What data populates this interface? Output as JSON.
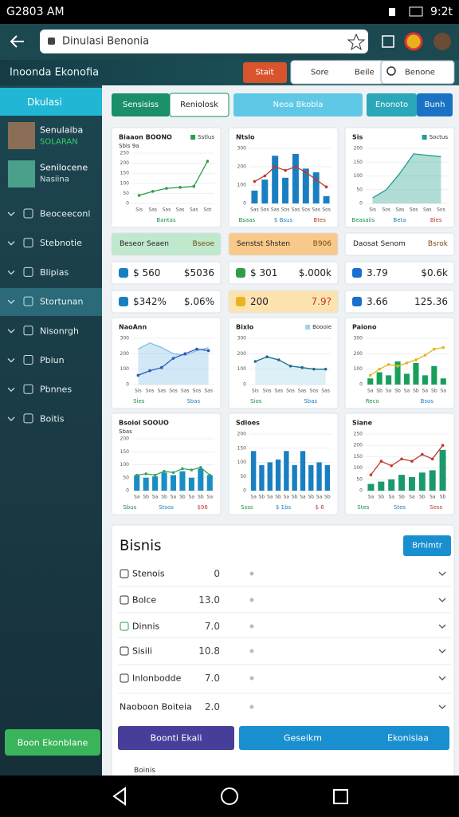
{
  "status_bar": {
    "left": "G2803 AM",
    "right": "9:2t"
  },
  "browser": {
    "url": "Dinulasi Benonia"
  },
  "header": {
    "title": "Inoonda Ekonofia",
    "buttons": [
      "Stait",
      "Sore",
      "Beile"
    ],
    "search": "Benone"
  },
  "sidebar": {
    "active": "Dkulasi",
    "profiles": [
      {
        "name": "Senulaiba",
        "sub": "SOLARAN"
      },
      {
        "name": "Senilocene",
        "sub": "Nasiina"
      }
    ],
    "menu": [
      "Beoceeconl",
      "Stebnotie",
      "Blipias",
      "Stortunan",
      "Nisonrgh",
      "Pbiun",
      "Pbnnes",
      "Boitis"
    ],
    "button": "Boon Ekonblane"
  },
  "tabs": [
    "Sensisiss",
    "Reniolosk",
    "Neoa Bkobla",
    "Enonoto",
    "Bunh"
  ],
  "charts": [
    {
      "type": "line",
      "title": "Biaaon BOONO",
      "subtitle": "Sbis 9a",
      "ylim": [
        0,
        250
      ],
      "yticks": [
        0,
        50,
        100,
        150,
        200,
        250
      ],
      "categories": [
        "Sis",
        "Sas",
        "Sas",
        "Sas",
        "Sas",
        "Sot"
      ],
      "series": [
        {
          "name": "Sstlus",
          "kind": "line",
          "color": "#2e9e4a",
          "values": [
            40,
            60,
            75,
            80,
            85,
            210
          ]
        }
      ],
      "footer": [
        "Bantas"
      ]
    },
    {
      "type": "combo",
      "title": "Ntslo",
      "ylim": [
        0,
        300
      ],
      "yticks": [
        0,
        100,
        200,
        300
      ],
      "categories": [
        "Sas",
        "Sos",
        "Sas",
        "Sos",
        "Sas",
        "Sos",
        "Sas",
        "Sos"
      ],
      "series": [
        {
          "kind": "bar",
          "color": "#1a7fc1",
          "values": [
            70,
            130,
            260,
            140,
            270,
            190,
            170,
            40
          ]
        },
        {
          "kind": "line",
          "color": "#c0392b",
          "values": [
            120,
            150,
            200,
            180,
            200,
            170,
            130,
            90
          ]
        }
      ],
      "footer": [
        "Bsaas",
        "$ Bsus",
        "Btes"
      ]
    },
    {
      "type": "area",
      "title": "Sis",
      "ylim": [
        0,
        200
      ],
      "yticks": [
        0,
        50,
        100,
        150,
        200
      ],
      "categories": [
        "Sis",
        "Sos",
        "Sas",
        "Sos",
        "Sas",
        "Sos"
      ],
      "series": [
        {
          "name": "Soctus",
          "kind": "area",
          "color": "#1e9e8a",
          "values": [
            20,
            50,
            110,
            180,
            175,
            170
          ]
        }
      ],
      "footer": [
        "Beasaiis",
        "Beta",
        "Bies"
      ]
    },
    {
      "type": "area",
      "title": "NaoAnn",
      "ylim": [
        0,
        300
      ],
      "yticks": [
        0,
        100,
        200,
        300
      ],
      "categories": [
        "Sis",
        "Sos",
        "Sas",
        "Sos",
        "Sas",
        "Sos",
        "Sas"
      ],
      "series": [
        {
          "kind": "area",
          "color": "#7dbde9",
          "values": [
            230,
            270,
            240,
            200,
            190,
            220,
            240
          ]
        },
        {
          "kind": "line",
          "color": "#2a5ab8",
          "values": [
            60,
            90,
            110,
            170,
            200,
            230,
            220
          ]
        }
      ],
      "footer": [
        "Sies",
        "Sbas"
      ]
    },
    {
      "type": "area",
      "title": "Bixlo",
      "ylim": [
        0,
        300
      ],
      "yticks": [
        0,
        100,
        200,
        300
      ],
      "categories": [
        "Sis",
        "Sos",
        "Sas",
        "Sos",
        "Sas",
        "Sos",
        "Sas"
      ],
      "series": [
        {
          "name": "Boooie",
          "kind": "area",
          "color": "#9fd3ec",
          "values": [
            150,
            180,
            160,
            120,
            110,
            100,
            100
          ]
        },
        {
          "kind": "line",
          "color": "#1e6f8a",
          "values": [
            150,
            180,
            160,
            120,
            110,
            100,
            100
          ]
        }
      ],
      "footer": [
        "Sios",
        "Sbas"
      ]
    },
    {
      "type": "combo",
      "title": "Paiono",
      "ylim": [
        0,
        300
      ],
      "yticks": [
        0,
        100,
        200,
        300
      ],
      "categories": [
        "Sa",
        "Sb",
        "Sa",
        "Sb",
        "Sa",
        "Sb",
        "Sa",
        "Sb",
        "Sa"
      ],
      "series": [
        {
          "kind": "bar",
          "color": "#18a05a",
          "values": [
            40,
            80,
            60,
            150,
            70,
            140,
            60,
            120,
            40
          ]
        },
        {
          "kind": "line",
          "color": "#e6b422",
          "values": [
            60,
            100,
            130,
            120,
            140,
            160,
            190,
            230,
            240
          ]
        }
      ],
      "footer": [
        "Reco",
        "Bsos"
      ]
    },
    {
      "type": "combo",
      "title": "Bsoiol SOOUO",
      "subtitle": "Sbas",
      "ylim": [
        0,
        200
      ],
      "yticks": [
        0,
        50,
        100,
        150,
        200
      ],
      "categories": [
        "Sa",
        "Sb",
        "Sa",
        "Sb",
        "Sa",
        "Sb",
        "Sa",
        "Sb",
        "Sa"
      ],
      "series": [
        {
          "kind": "bar",
          "color": "#1a8ec4",
          "values": [
            60,
            50,
            55,
            70,
            60,
            75,
            50,
            85,
            60
          ]
        },
        {
          "kind": "line",
          "color": "#3aa55a",
          "values": [
            60,
            65,
            60,
            75,
            70,
            85,
            80,
            90,
            60
          ]
        }
      ],
      "footer": [
        "Sbus",
        "Stsos",
        "$96"
      ]
    },
    {
      "type": "bar",
      "title": "Sdloes",
      "ylim": [
        0,
        200
      ],
      "yticks": [
        0,
        50,
        100,
        150,
        200
      ],
      "categories": [
        "Sa",
        "Sb",
        "Sa",
        "Sb",
        "Sa",
        "Sb",
        "Sa",
        "Sb",
        "Sa",
        "Sb"
      ],
      "series": [
        {
          "kind": "bar",
          "color": "#1a7fc1",
          "values": [
            140,
            90,
            100,
            110,
            140,
            90,
            140,
            90,
            100,
            90
          ]
        }
      ],
      "footer": [
        "Ssss",
        "$ 1bs",
        "$ 6"
      ]
    },
    {
      "type": "combo",
      "title": "Siane",
      "ylim": [
        0,
        250
      ],
      "yticks": [
        0,
        50,
        100,
        150,
        200,
        250
      ],
      "categories": [
        "Sa",
        "Sb",
        "Sa",
        "Sb",
        "Sa",
        "Sb",
        "Sa",
        "Sb"
      ],
      "series": [
        {
          "kind": "bar",
          "color": "#1a9a6a",
          "values": [
            30,
            40,
            50,
            70,
            60,
            80,
            90,
            180
          ]
        },
        {
          "kind": "line",
          "color": "#c0392b",
          "values": [
            70,
            130,
            110,
            140,
            130,
            160,
            140,
            200
          ]
        }
      ],
      "footer": [
        "Stes",
        "Stes",
        "Sess"
      ]
    }
  ],
  "stats": [
    [
      {
        "a": "Beseor Seaen",
        "b": "Bseoe"
      },
      {
        "a": "Senstst Shsten",
        "b": "B906"
      },
      {
        "a": "Daosat Senom",
        "b": "Bsrok"
      }
    ],
    [
      {
        "a": "$ 560",
        "b": "$5036"
      },
      {
        "a": "$ 301",
        "b": "$.000k"
      },
      {
        "a": "3.79",
        "b": "$0.6k"
      }
    ],
    [
      {
        "a": "$342%",
        "b": "$.06%"
      },
      {
        "a": "200",
        "b": "7.9?"
      },
      {
        "a": "3.66",
        "b": "125.36"
      }
    ]
  ],
  "bisnis": {
    "title": "Bisnis",
    "button": "Brhimtr",
    "rows": [
      {
        "label": "Stenois",
        "value": "0"
      },
      {
        "label": "Bolce",
        "value": "13.0"
      },
      {
        "label": "Dinnis",
        "value": "7.0"
      },
      {
        "label": "Sisili",
        "value": "10.8"
      },
      {
        "label": "Inlonbodde",
        "value": "7.0"
      },
      {
        "label": "Naoboon Boiteia",
        "value": "2.0"
      }
    ],
    "actions": [
      "Boonti Ekali",
      "Geseikm",
      "Ekonisiaa"
    ],
    "footer": "Boinis"
  }
}
